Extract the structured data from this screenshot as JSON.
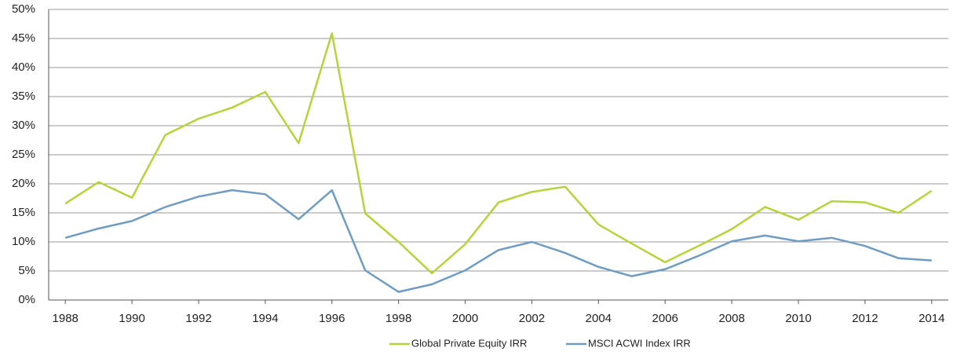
{
  "chart_data": {
    "type": "line",
    "x": [
      1988,
      1989,
      1990,
      1991,
      1992,
      1993,
      1994,
      1995,
      1996,
      1997,
      1998,
      1999,
      2000,
      2001,
      2002,
      2003,
      2004,
      2005,
      2006,
      2007,
      2008,
      2009,
      2010,
      2011,
      2012,
      2013,
      2014
    ],
    "series": [
      {
        "name": "Global Private Equity IRR",
        "color": "#b6d33c",
        "values": [
          16.6,
          20.3,
          17.6,
          28.4,
          31.2,
          33.1,
          35.8,
          27.0,
          45.9,
          14.9,
          10.0,
          4.6,
          9.6,
          16.8,
          18.6,
          19.5,
          13.0,
          9.7,
          6.5,
          9.3,
          12.2,
          16.0,
          13.8,
          17.0,
          16.8,
          15.0,
          18.8
        ]
      },
      {
        "name": "MSCI ACWI Index IRR",
        "color": "#6f9cc3",
        "values": [
          10.7,
          12.3,
          13.6,
          16.0,
          17.8,
          18.9,
          18.2,
          13.9,
          18.9,
          5.1,
          1.4,
          2.7,
          5.1,
          8.6,
          10.0,
          8.1,
          5.7,
          4.1,
          5.3,
          7.6,
          10.1,
          11.1,
          10.1,
          10.7,
          9.3,
          7.2,
          6.8
        ]
      }
    ],
    "xlim": [
      1987.5,
      2014.5
    ],
    "xticks": [
      1988,
      1990,
      1992,
      1994,
      1996,
      1998,
      2000,
      2002,
      2004,
      2006,
      2008,
      2010,
      2012,
      2014
    ],
    "ylim": [
      0,
      50
    ],
    "yticks": [
      {
        "value": 0,
        "label": "0%"
      },
      {
        "value": 5,
        "label": "5%"
      },
      {
        "value": 10,
        "label": "10%"
      },
      {
        "value": 15,
        "label": "15%"
      },
      {
        "value": 20,
        "label": "20%"
      },
      {
        "value": 25,
        "label": "25%"
      },
      {
        "value": 30,
        "label": "30%"
      },
      {
        "value": 35,
        "label": "35%"
      },
      {
        "value": 40,
        "label": "40%"
      },
      {
        "value": 45,
        "label": "45%"
      },
      {
        "value": 50,
        "label": "50%"
      }
    ],
    "grid": true,
    "legend": "bottom"
  }
}
